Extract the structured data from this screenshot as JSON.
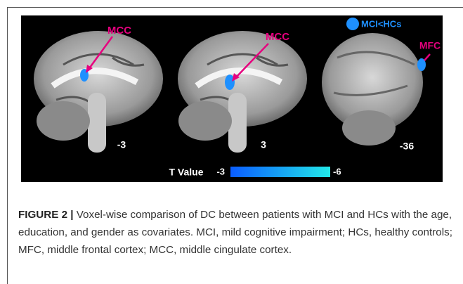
{
  "labels": [
    "MCC",
    "MCC",
    "MFC"
  ],
  "legend": "MCI<HCs",
  "slices": [
    "-3",
    "3",
    "-36"
  ],
  "colorbar": {
    "title": "T Value",
    "min": "-3",
    "max": "-6"
  },
  "caption": {
    "label": "FIGURE 2 |",
    "text": "Voxel-wise comparison of DC between patients with MCI and HCs with the age, education, and gender as covariates. MCI, mild cognitive impairment; HCs, healthy controls; MFC, middle frontal cortex; MCC, middle cingulate cortex."
  }
}
